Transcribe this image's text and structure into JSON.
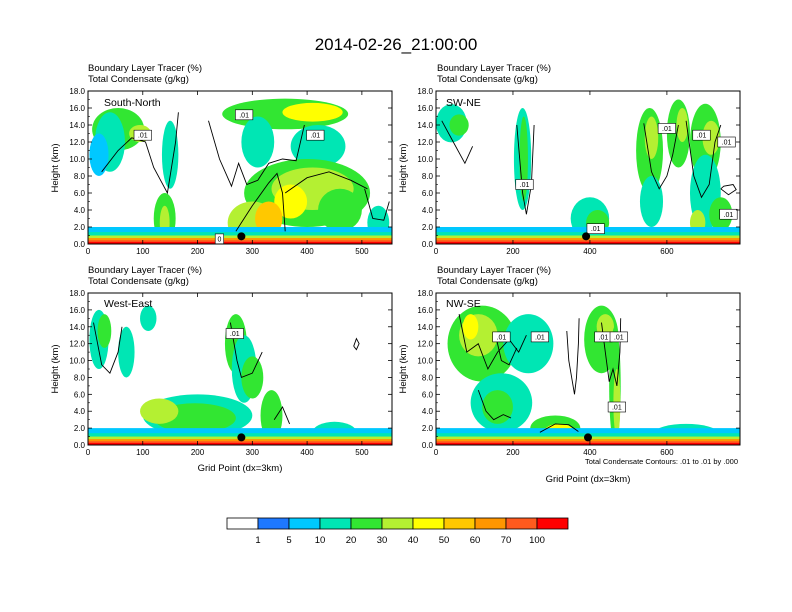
{
  "figure": {
    "title": "2014-02-26_21:00:00",
    "footnote": "Total Condensate Contours: .01 to .01 by .000"
  },
  "chart_data": [
    {
      "type": "heatmap",
      "panel": "South-North",
      "subtitle_line1": "Boundary Layer Tracer   (%)",
      "subtitle_line2": "Total Condensate   (g/kg)",
      "ylabel": "Height (km)",
      "xlabel": "",
      "xlim": [
        0,
        555
      ],
      "ylim": [
        0,
        18
      ],
      "xticks": [
        0,
        100,
        200,
        300,
        400,
        500
      ],
      "yticks": [
        "0.0",
        "2.0",
        "4.0",
        "6.0",
        "8.0",
        "10.0",
        "12.0",
        "14.0",
        "16.0",
        "18.0"
      ],
      "marker": {
        "x": 280,
        "y": 0.9
      },
      "contour_labels": [
        {
          "text": ".01",
          "x": 100,
          "y": 12.8
        },
        {
          "text": ".01",
          "x": 285,
          "y": 15.2
        },
        {
          "text": ".01",
          "x": 415,
          "y": 12.8
        },
        {
          "text": "0",
          "x": 240,
          "y": 0.6
        }
      ],
      "blobs": [
        {
          "x": 55,
          "y": 13.5,
          "w": 95,
          "h": 5,
          "v": 20
        },
        {
          "x": 40,
          "y": 12,
          "w": 55,
          "h": 7,
          "v": 10
        },
        {
          "x": 20,
          "y": 10.5,
          "w": 35,
          "h": 5,
          "v": 5
        },
        {
          "x": 95,
          "y": 13,
          "w": 40,
          "h": 2,
          "v": 30
        },
        {
          "x": 150,
          "y": 10.5,
          "w": 30,
          "h": 8,
          "v": 10
        },
        {
          "x": 140,
          "y": 3,
          "w": 40,
          "h": 6,
          "v": 20
        },
        {
          "x": 140,
          "y": 2.5,
          "w": 18,
          "h": 4,
          "v": 30
        },
        {
          "x": 360,
          "y": 15.3,
          "w": 230,
          "h": 3.6,
          "v": 20
        },
        {
          "x": 410,
          "y": 15.5,
          "w": 110,
          "h": 2.2,
          "v": 40
        },
        {
          "x": 310,
          "y": 12,
          "w": 60,
          "h": 6,
          "v": 10
        },
        {
          "x": 420,
          "y": 11.5,
          "w": 100,
          "h": 5,
          "v": 10
        },
        {
          "x": 400,
          "y": 6,
          "w": 230,
          "h": 8,
          "v": 20
        },
        {
          "x": 410,
          "y": 6.5,
          "w": 150,
          "h": 5,
          "v": 30
        },
        {
          "x": 370,
          "y": 5,
          "w": 60,
          "h": 4,
          "v": 40
        },
        {
          "x": 300,
          "y": 2.5,
          "w": 90,
          "h": 5,
          "v": 30
        },
        {
          "x": 330,
          "y": 3,
          "w": 50,
          "h": 4,
          "v": 50
        },
        {
          "x": 460,
          "y": 4,
          "w": 80,
          "h": 5,
          "v": 20
        },
        {
          "x": 530,
          "y": 2.5,
          "w": 40,
          "h": 4,
          "v": 10
        }
      ],
      "contours": [
        [
          [
            25,
            8.5
          ],
          [
            55,
            11
          ],
          [
            80,
            12.5
          ],
          [
            105,
            12
          ],
          [
            120,
            9
          ],
          [
            145,
            6
          ],
          [
            160,
            12
          ],
          [
            165,
            15.5
          ]
        ],
        [
          [
            220,
            14.5
          ],
          [
            240,
            10
          ],
          [
            262,
            6.8
          ],
          [
            275,
            9.5
          ],
          [
            290,
            7
          ],
          [
            310,
            7.5
          ],
          [
            330,
            9.5
          ],
          [
            355,
            10
          ],
          [
            380,
            9.8
          ],
          [
            395,
            14
          ]
        ],
        [
          [
            270,
            1.5
          ],
          [
            300,
            4.5
          ],
          [
            330,
            7.2
          ],
          [
            345,
            8.3
          ],
          [
            355,
            6
          ],
          [
            360,
            1.5
          ]
        ],
        [
          [
            360,
            6
          ],
          [
            400,
            7.8
          ],
          [
            440,
            8.5
          ],
          [
            480,
            7.5
          ],
          [
            510,
            6.5
          ]
        ],
        [
          [
            505,
            6.5
          ],
          [
            520,
            3
          ],
          [
            540,
            2.8
          ],
          [
            550,
            5
          ]
        ]
      ]
    },
    {
      "type": "heatmap",
      "panel": "SW-NE",
      "subtitle_line1": "Boundary Layer Tracer   (%)",
      "subtitle_line2": "Total Condensate   (g/kg)",
      "ylabel": "Height (km)",
      "xlabel": "",
      "xlim": [
        0,
        790
      ],
      "ylim": [
        0,
        18
      ],
      "xticks": [
        0,
        200,
        400,
        600
      ],
      "yticks": [
        "0.0",
        "2.0",
        "4.0",
        "6.0",
        "8.0",
        "10.0",
        "12.0",
        "14.0",
        "16.0",
        "18.0"
      ],
      "marker": {
        "x": 390,
        "y": 0.9
      },
      "contour_labels": [
        {
          "text": ".01",
          "x": 230,
          "y": 7
        },
        {
          "text": ".01",
          "x": 600,
          "y": 13.6
        },
        {
          "text": ".01",
          "x": 755,
          "y": 12
        },
        {
          "text": ".01",
          "x": 690,
          "y": 12.8
        },
        {
          "text": ".01",
          "x": 760,
          "y": 3.5
        },
        {
          "text": ".01",
          "x": 415,
          "y": 1.8
        }
      ],
      "blobs": [
        {
          "x": 40,
          "y": 14.2,
          "w": 80,
          "h": 4.5,
          "v": 10
        },
        {
          "x": 60,
          "y": 14,
          "w": 50,
          "h": 2.5,
          "v": 20
        },
        {
          "x": 225,
          "y": 10,
          "w": 45,
          "h": 12,
          "v": 10
        },
        {
          "x": 228,
          "y": 10,
          "w": 22,
          "h": 10,
          "v": 20
        },
        {
          "x": 400,
          "y": 3,
          "w": 100,
          "h": 5,
          "v": 10
        },
        {
          "x": 420,
          "y": 2.5,
          "w": 60,
          "h": 3,
          "v": 20
        },
        {
          "x": 555,
          "y": 11,
          "w": 70,
          "h": 10,
          "v": 20
        },
        {
          "x": 560,
          "y": 12.5,
          "w": 35,
          "h": 5,
          "v": 30
        },
        {
          "x": 630,
          "y": 13,
          "w": 60,
          "h": 8,
          "v": 20
        },
        {
          "x": 640,
          "y": 14,
          "w": 30,
          "h": 4,
          "v": 30
        },
        {
          "x": 700,
          "y": 12,
          "w": 80,
          "h": 9,
          "v": 20
        },
        {
          "x": 715,
          "y": 12.5,
          "w": 45,
          "h": 4,
          "v": 30
        },
        {
          "x": 700,
          "y": 6,
          "w": 80,
          "h": 9,
          "v": 10
        },
        {
          "x": 560,
          "y": 5,
          "w": 60,
          "h": 6,
          "v": 10
        },
        {
          "x": 740,
          "y": 3.5,
          "w": 60,
          "h": 4,
          "v": 20
        },
        {
          "x": 680,
          "y": 2.5,
          "w": 40,
          "h": 3,
          "v": 30
        }
      ],
      "contours": [
        [
          [
            15,
            14.5
          ],
          [
            45,
            12
          ],
          [
            75,
            9.5
          ],
          [
            95,
            11.5
          ]
        ],
        [
          [
            210,
            14
          ],
          [
            225,
            6
          ],
          [
            235,
            3.5
          ],
          [
            248,
            7
          ],
          [
            255,
            14
          ]
        ],
        [
          [
            540,
            14.2
          ],
          [
            560,
            8.5
          ],
          [
            580,
            6.5
          ],
          [
            600,
            8
          ],
          [
            615,
            10.5
          ],
          [
            630,
            14
          ]
        ],
        [
          [
            650,
            14.5
          ],
          [
            670,
            8
          ],
          [
            690,
            5.5
          ],
          [
            710,
            7
          ],
          [
            725,
            12
          ],
          [
            740,
            14
          ]
        ],
        [
          [
            740,
            6.5
          ],
          [
            760,
            5.8
          ],
          [
            780,
            6.4
          ],
          [
            772,
            7
          ],
          [
            748,
            6.8
          ],
          [
            740,
            6.5
          ]
        ]
      ]
    },
    {
      "type": "heatmap",
      "panel": "West-East",
      "subtitle_line1": "Boundary Layer Tracer   (%)",
      "subtitle_line2": "Total Condensate   (g/kg)",
      "ylabel": "Height (km)",
      "xlabel": "Grid Point (dx=3km)",
      "xlim": [
        0,
        555
      ],
      "ylim": [
        0,
        18
      ],
      "xticks": [
        0,
        100,
        200,
        300,
        400,
        500
      ],
      "yticks": [
        "0.0",
        "2.0",
        "4.0",
        "6.0",
        "8.0",
        "10.0",
        "12.0",
        "14.0",
        "16.0",
        "18.0"
      ],
      "marker": {
        "x": 280,
        "y": 0.9
      },
      "contour_labels": [
        {
          "text": ".01",
          "x": 268,
          "y": 13.2
        }
      ],
      "blobs": [
        {
          "x": 20,
          "y": 12.5,
          "w": 35,
          "h": 7,
          "v": 10
        },
        {
          "x": 30,
          "y": 13.5,
          "w": 25,
          "h": 4,
          "v": 20
        },
        {
          "x": 70,
          "y": 11,
          "w": 30,
          "h": 6,
          "v": 10
        },
        {
          "x": 110,
          "y": 15,
          "w": 30,
          "h": 3,
          "v": 10
        },
        {
          "x": 200,
          "y": 3.5,
          "w": 200,
          "h": 5,
          "v": 10
        },
        {
          "x": 195,
          "y": 3.2,
          "w": 150,
          "h": 3.5,
          "v": 20
        },
        {
          "x": 130,
          "y": 4,
          "w": 70,
          "h": 3,
          "v": 30
        },
        {
          "x": 270,
          "y": 12,
          "w": 40,
          "h": 7,
          "v": 20
        },
        {
          "x": 285,
          "y": 9,
          "w": 45,
          "h": 8,
          "v": 10
        },
        {
          "x": 300,
          "y": 8,
          "w": 40,
          "h": 5,
          "v": 20
        },
        {
          "x": 335,
          "y": 3.5,
          "w": 40,
          "h": 6,
          "v": 20
        },
        {
          "x": 450,
          "y": 1.5,
          "w": 80,
          "h": 2.5,
          "v": 10
        }
      ],
      "contours": [
        [
          [
            10,
            14.5
          ],
          [
            25,
            9.5
          ],
          [
            40,
            8.5
          ],
          [
            55,
            11
          ],
          [
            62,
            14
          ]
        ],
        [
          [
            260,
            14.5
          ],
          [
            272,
            10
          ],
          [
            280,
            8
          ],
          [
            300,
            8.5
          ],
          [
            318,
            11
          ]
        ],
        [
          [
            340,
            3
          ],
          [
            355,
            4.5
          ],
          [
            368,
            2.5
          ]
        ],
        [
          [
            485,
            11.7
          ],
          [
            490,
            11.3
          ],
          [
            495,
            12
          ],
          [
            490,
            12.6
          ],
          [
            485,
            11.7
          ]
        ]
      ]
    },
    {
      "type": "heatmap",
      "panel": "NW-SE",
      "subtitle_line1": "Boundary Layer Tracer   (%)",
      "subtitle_line2": "Total Condensate   (g/kg)",
      "ylabel": "Height (km)",
      "xlabel": "Grid Point (dx=3km)",
      "xlim": [
        0,
        790
      ],
      "ylim": [
        0,
        18
      ],
      "xticks": [
        0,
        200,
        400,
        600
      ],
      "yticks": [
        "0.0",
        "2.0",
        "4.0",
        "6.0",
        "8.0",
        "10.0",
        "12.0",
        "14.0",
        "16.0",
        "18.0"
      ],
      "marker": {
        "x": 395,
        "y": 0.9
      },
      "contour_labels": [
        {
          "text": ".01",
          "x": 170,
          "y": 12.8
        },
        {
          "text": ".01",
          "x": 270,
          "y": 12.8
        },
        {
          "text": ".01",
          "x": 435,
          "y": 12.8
        },
        {
          "text": ".01",
          "x": 475,
          "y": 12.8
        },
        {
          "text": ".01",
          "x": 470,
          "y": 4.5
        }
      ],
      "blobs": [
        {
          "x": 120,
          "y": 12,
          "w": 180,
          "h": 9,
          "v": 20
        },
        {
          "x": 110,
          "y": 13,
          "w": 100,
          "h": 5,
          "v": 30
        },
        {
          "x": 90,
          "y": 14,
          "w": 40,
          "h": 3,
          "v": 40
        },
        {
          "x": 240,
          "y": 12,
          "w": 130,
          "h": 7,
          "v": 10
        },
        {
          "x": 170,
          "y": 5,
          "w": 160,
          "h": 7,
          "v": 10
        },
        {
          "x": 160,
          "y": 4.5,
          "w": 80,
          "h": 4,
          "v": 20
        },
        {
          "x": 430,
          "y": 12.5,
          "w": 90,
          "h": 8,
          "v": 20
        },
        {
          "x": 440,
          "y": 14,
          "w": 45,
          "h": 3,
          "v": 30
        },
        {
          "x": 465,
          "y": 7,
          "w": 30,
          "h": 14,
          "v": 20
        },
        {
          "x": 470,
          "y": 5,
          "w": 18,
          "h": 8,
          "v": 30
        },
        {
          "x": 310,
          "y": 2,
          "w": 130,
          "h": 3,
          "v": 20
        },
        {
          "x": 320,
          "y": 1.5,
          "w": 80,
          "h": 2,
          "v": 40
        },
        {
          "x": 650,
          "y": 1.5,
          "w": 160,
          "h": 2,
          "v": 10
        }
      ],
      "contours": [
        [
          [
            60,
            15.5
          ],
          [
            80,
            11
          ],
          [
            110,
            12
          ],
          [
            135,
            9
          ],
          [
            160,
            11
          ],
          [
            190,
            12.5
          ],
          [
            215,
            11
          ],
          [
            235,
            13
          ]
        ],
        [
          [
            155,
            13
          ],
          [
            170,
            10
          ],
          [
            190,
            9.5
          ],
          [
            210,
            11.5
          ]
        ],
        [
          [
            340,
            13.5
          ],
          [
            345,
            10
          ],
          [
            360,
            6
          ],
          [
            365,
            8
          ],
          [
            370,
            12
          ],
          [
            372,
            15
          ]
        ],
        [
          [
            430,
            14.5
          ],
          [
            440,
            11
          ],
          [
            450,
            7.5
          ],
          [
            460,
            9
          ],
          [
            470,
            7
          ],
          [
            478,
            11
          ],
          [
            480,
            15
          ]
        ],
        [
          [
            110,
            6.5
          ],
          [
            130,
            4
          ],
          [
            150,
            3
          ],
          [
            175,
            3.6
          ],
          [
            195,
            3.2
          ]
        ],
        [
          [
            270,
            1.5
          ],
          [
            310,
            2.5
          ],
          [
            345,
            2.4
          ],
          [
            370,
            1.6
          ]
        ]
      ]
    }
  ],
  "colorbar": {
    "labels": [
      "1",
      "5",
      "10",
      "20",
      "30",
      "40",
      "50",
      "60",
      "70",
      "100"
    ],
    "colors": [
      "#ffffff",
      "#1e78ff",
      "#00c8ff",
      "#00e6b4",
      "#32e632",
      "#b4f032",
      "#ffff00",
      "#ffc800",
      "#ff9600",
      "#ff5a1e",
      "#ff0000"
    ]
  }
}
